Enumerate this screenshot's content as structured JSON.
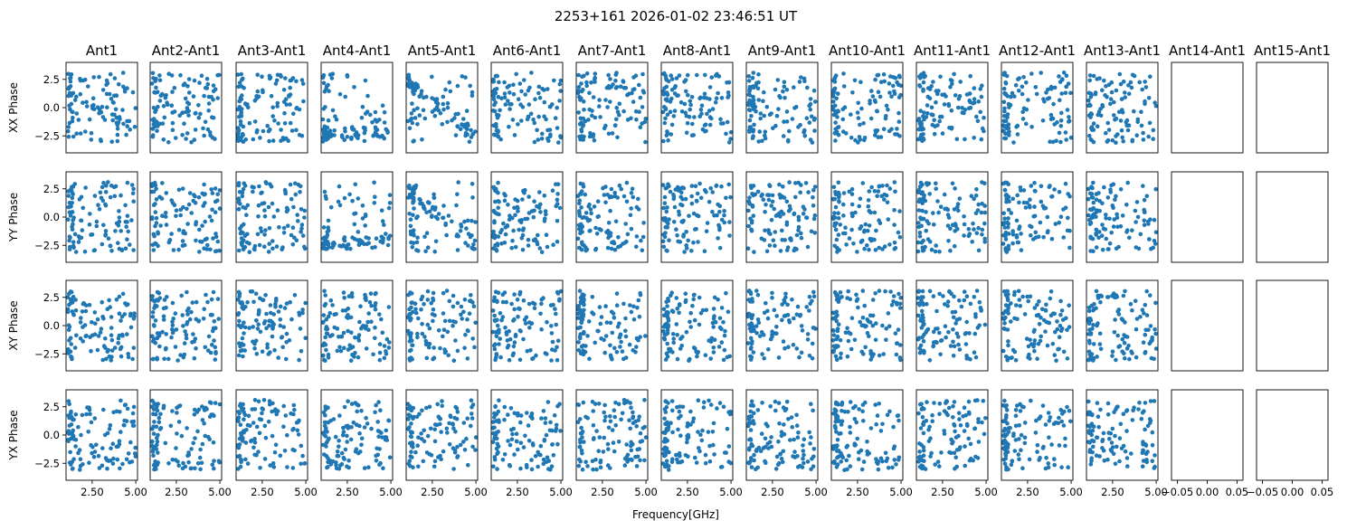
{
  "figure": {
    "title": "2253+161 2026-01-02 23:46:51 UT",
    "xlabel": "Frequency[GHz]"
  },
  "colors": {
    "marker": "#1f77b4",
    "axes": "#000000",
    "background": "#ffffff"
  },
  "chart_data": {
    "type": "scatter",
    "columns": [
      "Ant1",
      "Ant2-Ant1",
      "Ant3-Ant1",
      "Ant4-Ant1",
      "Ant5-Ant1",
      "Ant6-Ant1",
      "Ant7-Ant1",
      "Ant8-Ant1",
      "Ant9-Ant1",
      "Ant10-Ant1",
      "Ant11-Ant1",
      "Ant12-Ant1",
      "Ant13-Ant1",
      "Ant14-Ant1",
      "Ant15-Ant1"
    ],
    "rows": [
      "XX Phase",
      "YY Phase",
      "XY Phase",
      "YX Phase"
    ],
    "ylim": [
      -4.0,
      4.0
    ],
    "yticks": [
      -2.5,
      0.0,
      2.5
    ],
    "ytick_labels": [
      "−2.5",
      "0.0",
      "2.5"
    ],
    "xlim": [
      1.0,
      5.1
    ],
    "xticks": [
      2.5,
      5.0
    ],
    "xtick_labels": [
      "2.50",
      "5.00"
    ],
    "empty_xlim": [
      -0.06,
      0.06
    ],
    "empty_xticks": [
      -0.05,
      0.0,
      0.05
    ],
    "empty_xtick_labels": [
      "−0.05",
      "0.00",
      "0.05"
    ],
    "points_per_panel": 110,
    "freq_range_ghz": [
      1.1,
      5.0
    ],
    "panels": [
      {
        "row": "XX Phase",
        "col": "Ant1",
        "has_data": true
      },
      {
        "row": "XX Phase",
        "col": "Ant2-Ant1",
        "has_data": true
      },
      {
        "row": "XX Phase",
        "col": "Ant3-Ant1",
        "has_data": true
      },
      {
        "row": "XX Phase",
        "col": "Ant4-Ant1",
        "has_data": true
      },
      {
        "row": "XX Phase",
        "col": "Ant5-Ant1",
        "has_data": true
      },
      {
        "row": "XX Phase",
        "col": "Ant6-Ant1",
        "has_data": true
      },
      {
        "row": "XX Phase",
        "col": "Ant7-Ant1",
        "has_data": true
      },
      {
        "row": "XX Phase",
        "col": "Ant8-Ant1",
        "has_data": true
      },
      {
        "row": "XX Phase",
        "col": "Ant9-Ant1",
        "has_data": true
      },
      {
        "row": "XX Phase",
        "col": "Ant10-Ant1",
        "has_data": true
      },
      {
        "row": "XX Phase",
        "col": "Ant11-Ant1",
        "has_data": true
      },
      {
        "row": "XX Phase",
        "col": "Ant12-Ant1",
        "has_data": true
      },
      {
        "row": "XX Phase",
        "col": "Ant13-Ant1",
        "has_data": true
      },
      {
        "row": "XX Phase",
        "col": "Ant14-Ant1",
        "has_data": false
      },
      {
        "row": "XX Phase",
        "col": "Ant15-Ant1",
        "has_data": false
      }
    ]
  }
}
